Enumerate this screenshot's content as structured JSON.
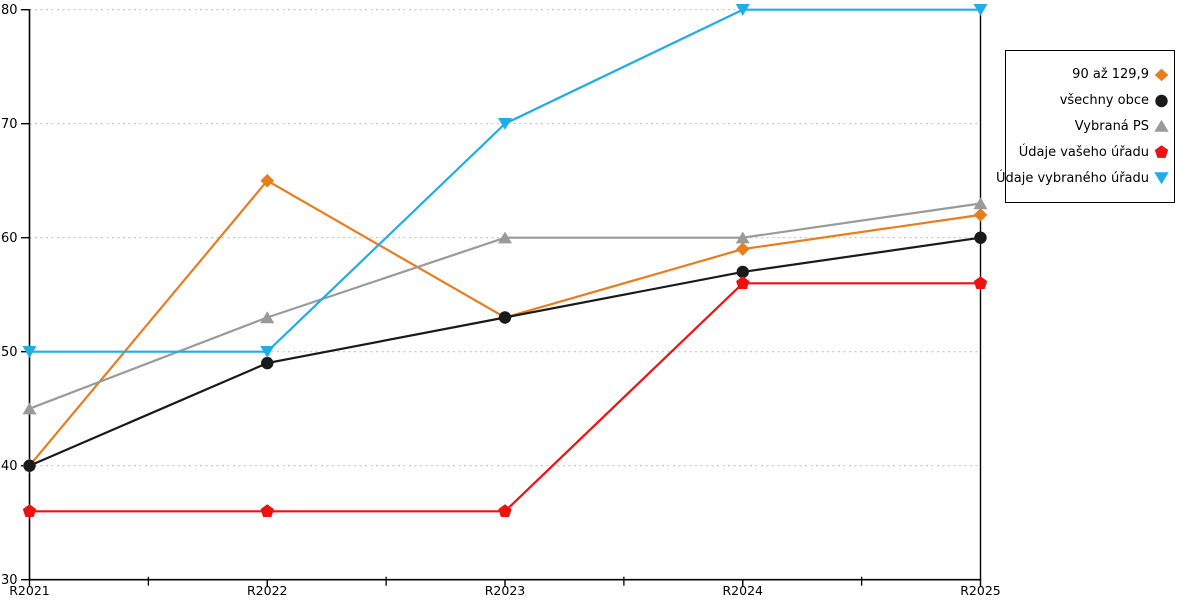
{
  "chart_data": {
    "type": "line",
    "categories": [
      "R2021",
      "R2022",
      "R2023",
      "R2024",
      "R2025"
    ],
    "series": [
      {
        "key": "90-az-129-9",
        "name": "90 až 129,9",
        "marker": "diamond",
        "color": "#E87D1E",
        "values": [
          40,
          65,
          53,
          59,
          62
        ]
      },
      {
        "key": "vsechny-obce",
        "name": "všechny obce",
        "marker": "circle",
        "color": "#1A1A1A",
        "values": [
          40,
          49,
          53,
          57,
          60
        ]
      },
      {
        "key": "vybrana-ps",
        "name": "Vybraná PS",
        "marker": "triangle-up",
        "color": "#9A9A9A",
        "values": [
          45,
          53,
          60,
          60,
          63
        ]
      },
      {
        "key": "udaje-vaseho-uradu",
        "name": "Údaje vašeho úřadu",
        "marker": "pentagon",
        "color": "#EE1111",
        "values": [
          36,
          36,
          36,
          56,
          56
        ]
      },
      {
        "key": "udaje-vybraneho-uradu",
        "name": "Údaje vybraného úřadu",
        "marker": "triangle-down",
        "color": "#1FADE8",
        "values": [
          50,
          50,
          70,
          80,
          80
        ]
      }
    ],
    "ylim": [
      30,
      80
    ],
    "yticks": [
      30,
      40,
      50,
      60,
      70,
      80
    ],
    "grid": "horizontal dotted",
    "legend_position": "top-right"
  },
  "style": {
    "axis_color": "#000000",
    "grid_color": "#C3C3C3",
    "background": "#FFFFFF",
    "tick_label_color": "#000000"
  }
}
